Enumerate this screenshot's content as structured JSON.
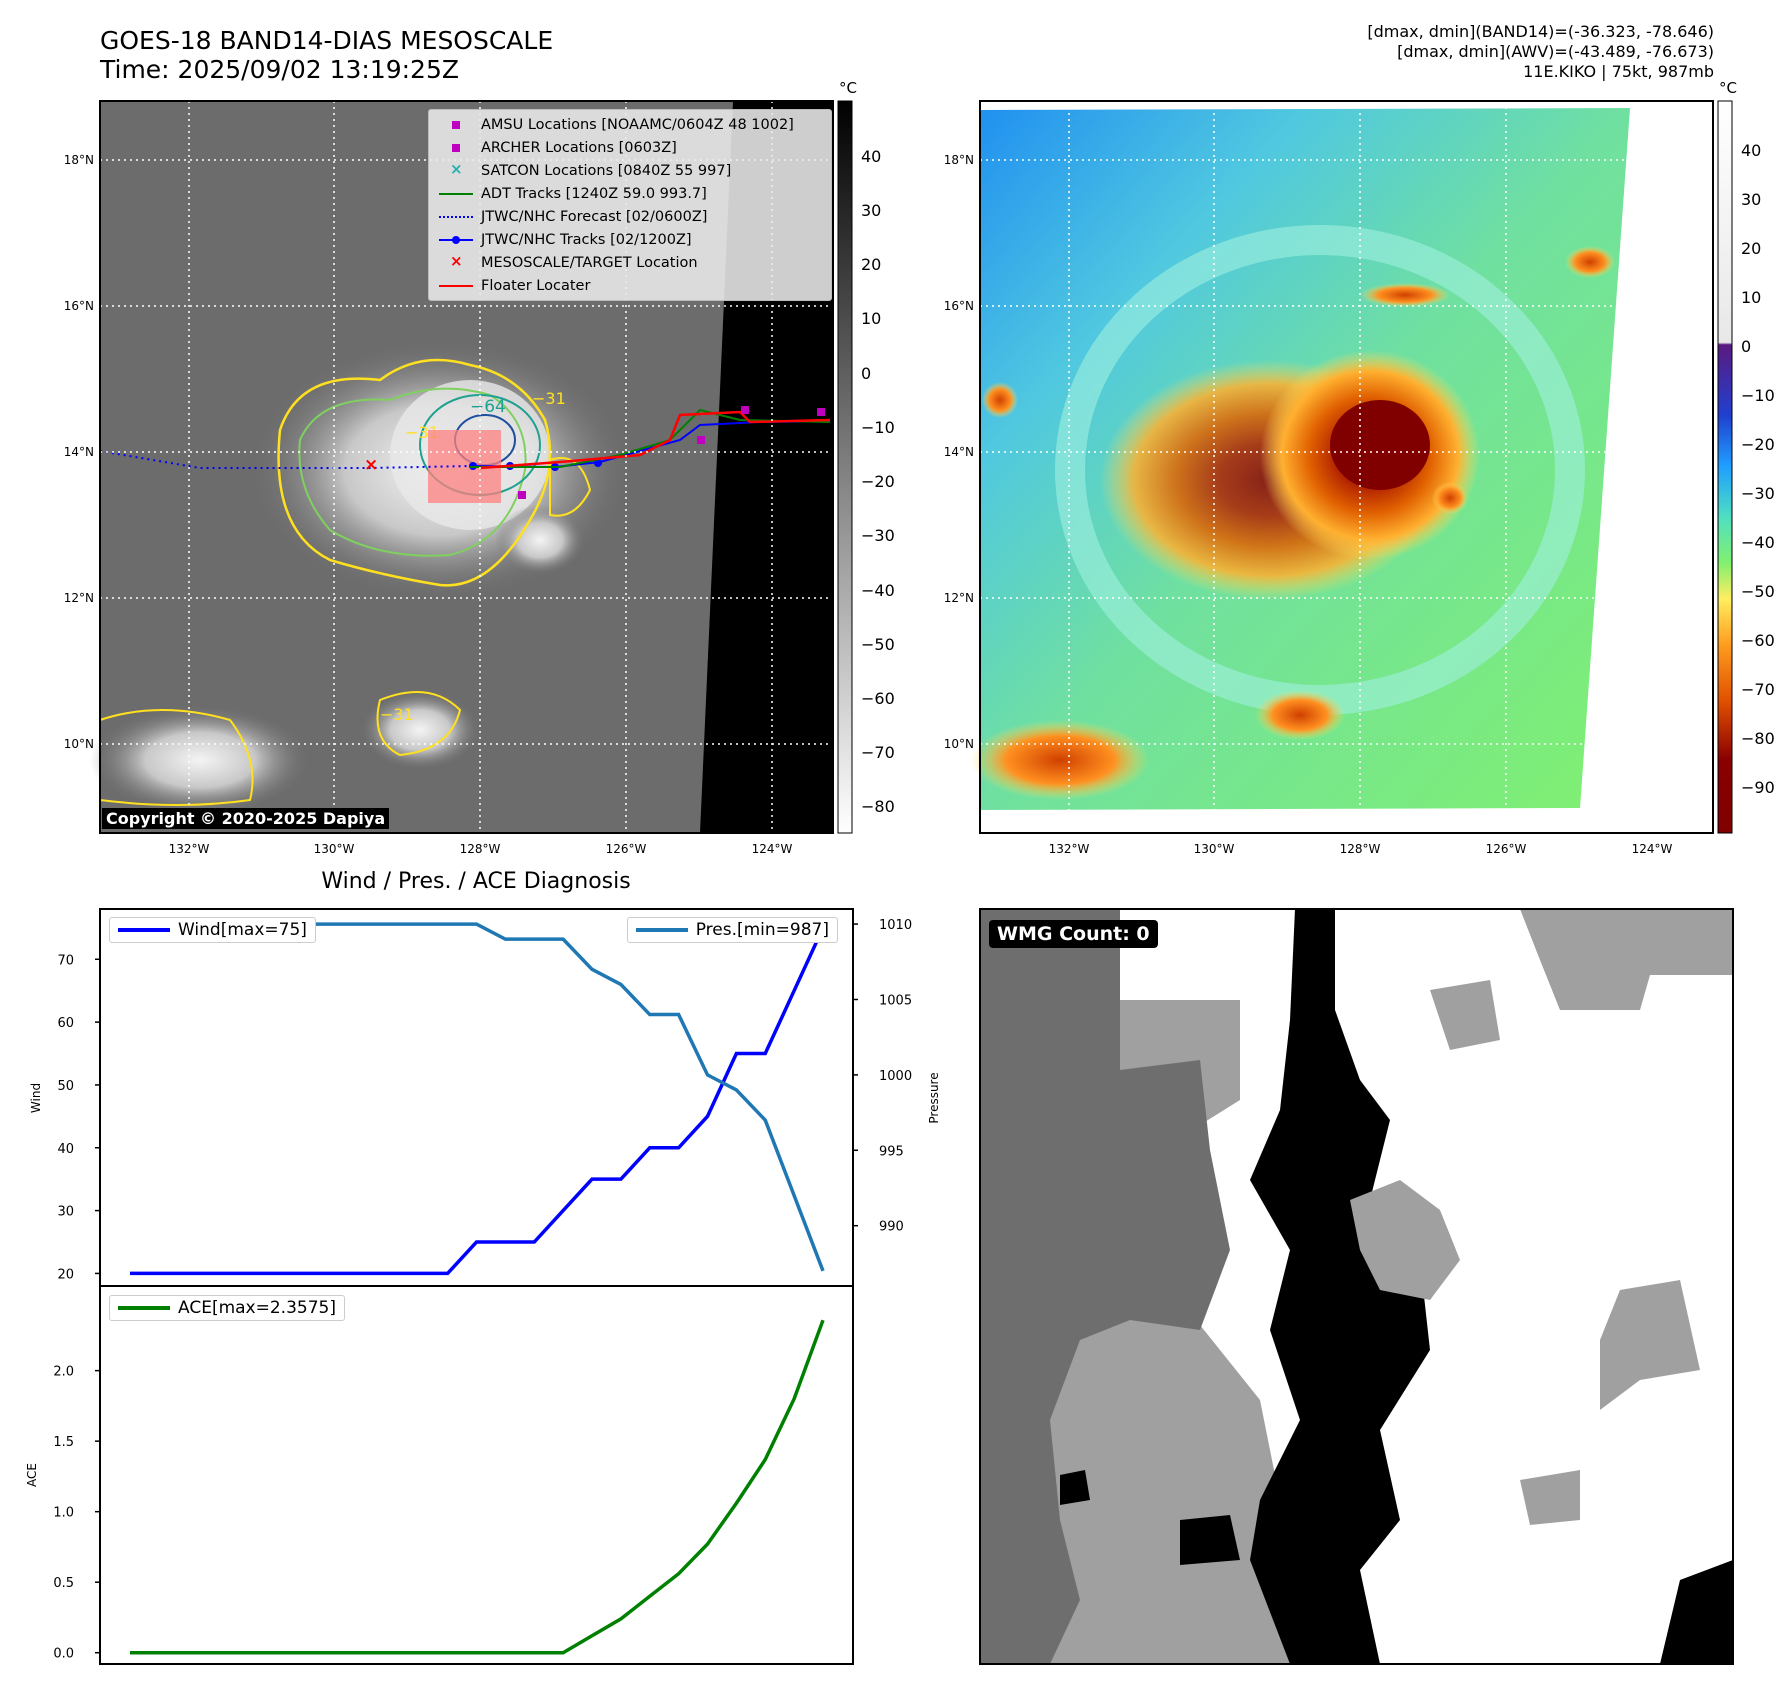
{
  "header": {
    "title_line1": "GOES-18 BAND14-DIAS MESOSCALE",
    "title_line2": "Time: 2025/09/02 13:19:25Z",
    "right_line1": "[dmax, dmin](BAND14)=(-36.323, -78.646)",
    "right_line2": "[dmax, dmin](AWV)=(-43.489, -76.673)",
    "right_line3": "11E.KIKO | 75kt, 987mb"
  },
  "map_axes": {
    "lat_labels": [
      "18°N",
      "16°N",
      "14°N",
      "12°N",
      "10°N"
    ],
    "lon_labels": [
      "132°W",
      "130°W",
      "128°W",
      "126°W",
      "124°W"
    ]
  },
  "left_colorbar": {
    "unit": "°C",
    "ticks": [
      "40",
      "30",
      "20",
      "10",
      "0",
      "−10",
      "−20",
      "−30",
      "−40",
      "−50",
      "−60",
      "−70",
      "−80"
    ]
  },
  "right_colorbar": {
    "unit": "°C",
    "ticks": [
      "40",
      "30",
      "20",
      "10",
      "0",
      "−10",
      "−20",
      "−30",
      "−40",
      "−50",
      "−60",
      "−70",
      "−80",
      "−90"
    ]
  },
  "legend": {
    "items": [
      {
        "label": "AMSU Locations [NOAAMC/0604Z 48 1002]",
        "color": "#c000c0",
        "symbol": "square"
      },
      {
        "label": "ARCHER Locations [0603Z]",
        "color": "#c000c0",
        "symbol": "square"
      },
      {
        "label": "SATCON Locations [0840Z 55 997]",
        "color": "#20b0b0",
        "symbol": "x"
      },
      {
        "label": "ADT Tracks [1240Z 59.0 993.7]",
        "color": "#008000",
        "symbol": "line"
      },
      {
        "label": "JTWC/NHC Forecast [02/0600Z]",
        "color": "#0000ff",
        "symbol": "dotted"
      },
      {
        "label": "JTWC/NHC Tracks [02/1200Z]",
        "color": "#0000ff",
        "symbol": "line-dot"
      },
      {
        "label": "MESOSCALE/TARGET Location",
        "color": "#ff0000",
        "symbol": "x"
      },
      {
        "label": "Floater Locater",
        "color": "#ff0000",
        "symbol": "line"
      }
    ]
  },
  "contour_labels": [
    "−64",
    "−31",
    "−31",
    "−31"
  ],
  "copyright": "Copyright © 2020-2025 Dapiya",
  "wmg_label": "WMG Count: 0",
  "colors": {
    "wind": "#0000ff",
    "pressure": "#1f77b4",
    "ace": "#008000",
    "contour_yellow": "#ffe020",
    "contour_green": "#80d060",
    "contour_teal": "#20a090"
  },
  "chart_data": [
    {
      "type": "line",
      "title": "Wind / Pres. / ACE Diagnosis",
      "ylabel": "Wind",
      "ylabel_right": "Pressure",
      "ylim": [
        18,
        78
      ],
      "ylim_right": [
        986,
        1011
      ],
      "yticks": [
        20,
        30,
        40,
        50,
        60,
        70
      ],
      "yticks_right": [
        990,
        995,
        1000,
        1005,
        1010
      ],
      "series": [
        {
          "name": "Wind[max=75]",
          "axis": "left",
          "values": [
            20,
            20,
            20,
            20,
            20,
            20,
            20,
            20,
            20,
            20,
            20,
            20,
            25,
            25,
            25,
            30,
            35,
            35,
            40,
            40,
            45,
            55,
            55,
            65,
            75
          ]
        },
        {
          "name": "Pres.[min=987]",
          "axis": "right",
          "values": [
            1010,
            1010,
            1010,
            1010,
            1010,
            1010,
            1010,
            1010,
            1010,
            1010,
            1010,
            1010,
            1010,
            1009,
            1009,
            1009,
            1007,
            1006,
            1004,
            1004,
            1000,
            999,
            997,
            992,
            987
          ]
        }
      ]
    },
    {
      "type": "line",
      "ylabel": "ACE",
      "ylim": [
        -0.08,
        2.6
      ],
      "yticks": [
        "0.0",
        "0.5",
        "1.0",
        "1.5",
        "2.0"
      ],
      "series": [
        {
          "name": "ACE[max=2.3575]",
          "values": [
            0,
            0,
            0,
            0,
            0,
            0,
            0,
            0,
            0,
            0,
            0,
            0,
            0,
            0,
            0,
            0,
            0.12,
            0.24,
            0.4,
            0.56,
            0.77,
            1.06,
            1.37,
            1.8,
            2.3575
          ]
        }
      ]
    }
  ]
}
